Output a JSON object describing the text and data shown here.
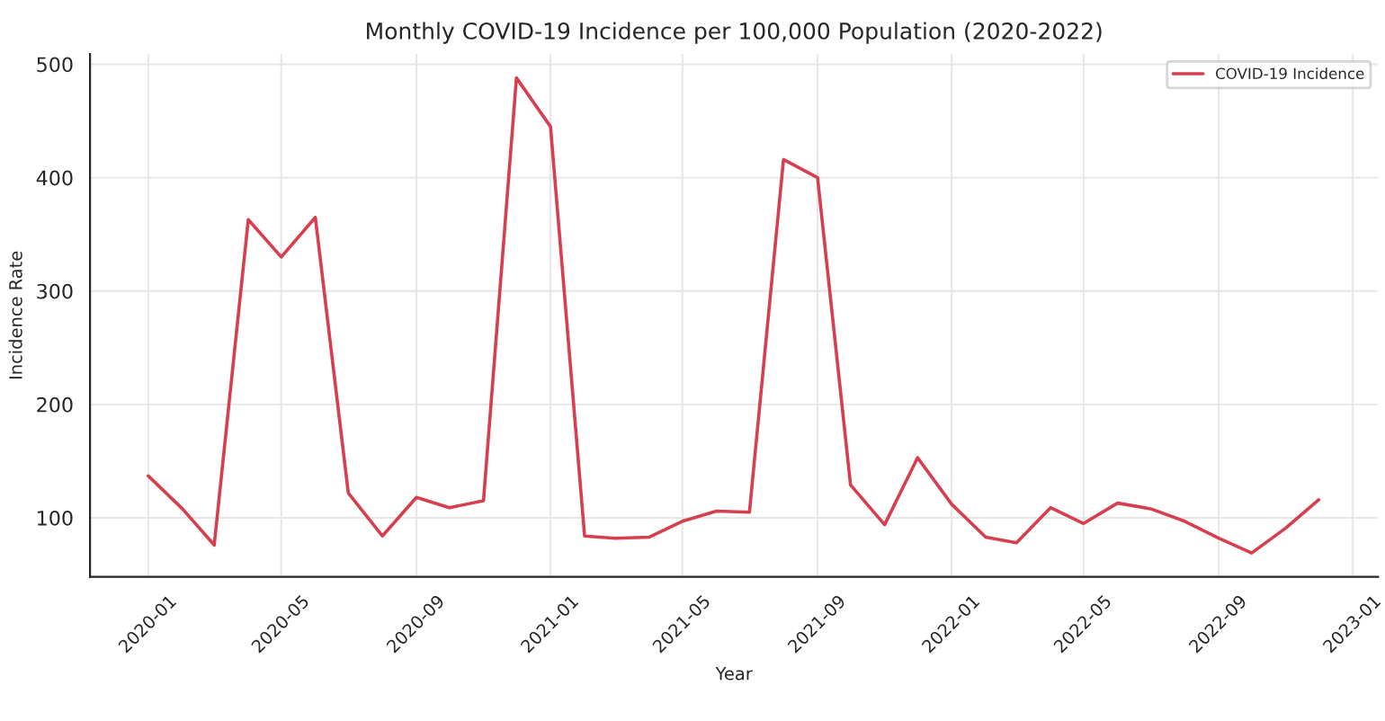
{
  "chart_data": {
    "type": "line",
    "title": "Monthly COVID-19 Incidence per 100,000 Population (2020-2022)",
    "xlabel": "Year",
    "ylabel": "Incidence Rate",
    "x": [
      "2020-01",
      "2020-02",
      "2020-03",
      "2020-04",
      "2020-05",
      "2020-06",
      "2020-07",
      "2020-08",
      "2020-09",
      "2020-10",
      "2020-11",
      "2020-12",
      "2021-01",
      "2021-02",
      "2021-03",
      "2021-04",
      "2021-05",
      "2021-06",
      "2021-07",
      "2021-08",
      "2021-09",
      "2021-10",
      "2021-11",
      "2021-12",
      "2022-01",
      "2022-02",
      "2022-03",
      "2022-04",
      "2022-05",
      "2022-06",
      "2022-07",
      "2022-08",
      "2022-09",
      "2022-10",
      "2022-11",
      "2022-12"
    ],
    "series": [
      {
        "name": "COVID-19 Incidence",
        "color": "#d6404e",
        "values": [
          137,
          108,
          76,
          363,
          330,
          365,
          122,
          84,
          118,
          109,
          115,
          488,
          445,
          84,
          82,
          83,
          97,
          106,
          105,
          416,
          400,
          129,
          94,
          153,
          112,
          83,
          78,
          109,
          95,
          113,
          108,
          97,
          82,
          69,
          91,
          116
        ]
      }
    ],
    "xlim": [
      "2019-11-09",
      "2023-01-24"
    ],
    "xticks": [
      {
        "value": "2020-01",
        "label": "2020-01"
      },
      {
        "value": "2020-05",
        "label": "2020-05"
      },
      {
        "value": "2020-09",
        "label": "2020-09"
      },
      {
        "value": "2021-01",
        "label": "2021-01"
      },
      {
        "value": "2021-05",
        "label": "2021-05"
      },
      {
        "value": "2021-09",
        "label": "2021-09"
      },
      {
        "value": "2022-01",
        "label": "2022-01"
      },
      {
        "value": "2022-05",
        "label": "2022-05"
      },
      {
        "value": "2022-09",
        "label": "2022-09"
      },
      {
        "value": "2023-01",
        "label": "2023-01"
      }
    ],
    "ylim": [
      48,
      509
    ],
    "yticks": [
      100,
      200,
      300,
      400,
      500
    ],
    "grid": true,
    "legend": "top right",
    "marker": "none",
    "line_style": "solid"
  }
}
